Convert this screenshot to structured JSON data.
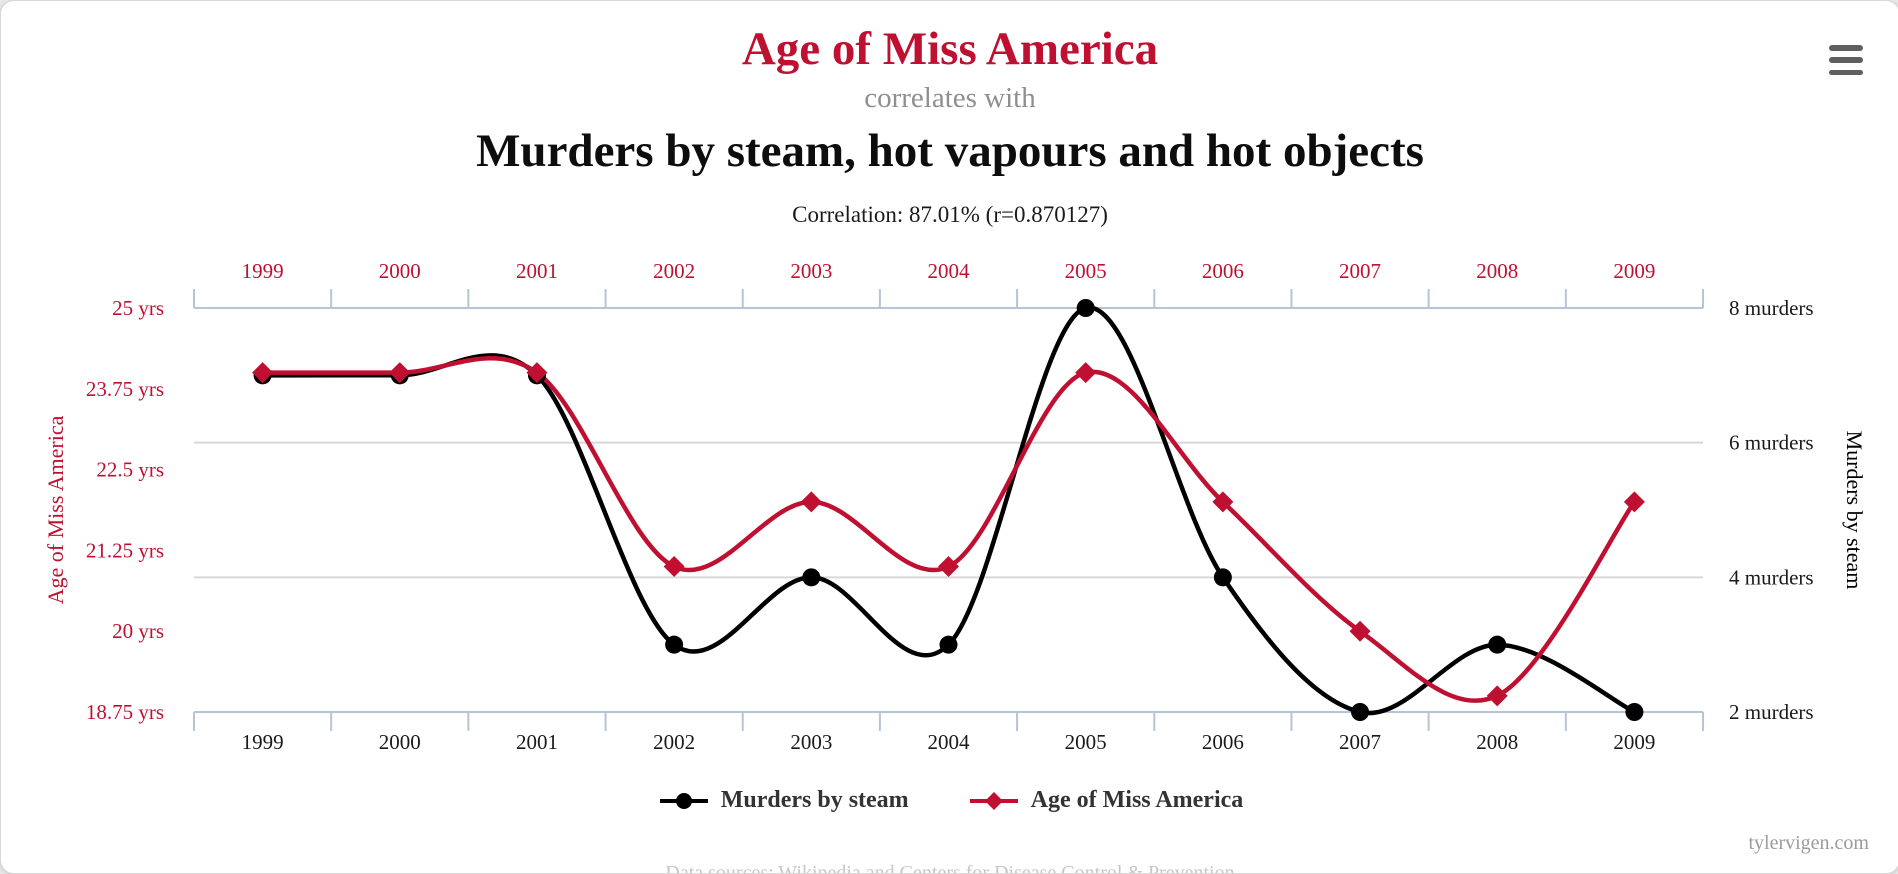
{
  "header": {
    "title_red": "Age of Miss America",
    "connector": "correlates with",
    "title_black": "Murders by steam, hot vapours and hot objects",
    "correlation_line": "Correlation: 87.01% (r=0.870127)"
  },
  "colors": {
    "red": "#c01032",
    "black": "#000000",
    "axis_lines": "#b5c4d6",
    "gridline": "#d8d8d8",
    "top_year_labels": "#c01032",
    "bottom_year_labels": "#1a1a1a",
    "right_tick_labels": "#1a1a1a"
  },
  "chart_data": {
    "type": "line",
    "x": [
      "1999",
      "2000",
      "2001",
      "2002",
      "2003",
      "2004",
      "2005",
      "2006",
      "2007",
      "2008",
      "2009"
    ],
    "x_axis_top": {
      "labels_color": "red",
      "position": "above plot"
    },
    "x_axis_bottom": {
      "labels_color": "black",
      "position": "below plot"
    },
    "series": [
      {
        "name": "Murders by steam",
        "axis": "right",
        "marker": "circle",
        "color": "#000000",
        "values": [
          7,
          7,
          7,
          3,
          4,
          3,
          8,
          4,
          2,
          3,
          2
        ]
      },
      {
        "name": "Age of Miss America",
        "axis": "left",
        "marker": "diamond",
        "color": "#c01032",
        "values": [
          24,
          24,
          24,
          21,
          22,
          21,
          24,
          22,
          20,
          19,
          22
        ]
      }
    ],
    "left_axis": {
      "label": "Age of Miss America",
      "tick_labels": [
        "25 yrs",
        "23.75 yrs",
        "22.5 yrs",
        "21.25 yrs",
        "20 yrs",
        "18.75 yrs"
      ],
      "tick_values": [
        25,
        23.75,
        22.5,
        21.25,
        20,
        18.75
      ],
      "range": [
        18.75,
        25
      ]
    },
    "right_axis": {
      "label": "Murders by steam",
      "tick_labels": [
        "8 murders",
        "6 murders",
        "4 murders",
        "2 murders"
      ],
      "tick_values": [
        8,
        6,
        4,
        2
      ],
      "range": [
        2,
        8
      ]
    },
    "grid": "horizontal",
    "legend_position": "bottom",
    "curve": "smooth"
  },
  "legend": {
    "items": [
      {
        "label": "Murders by steam",
        "marker": "circle",
        "color": "#000000"
      },
      {
        "label": "Age of Miss America",
        "marker": "diamond",
        "color": "#c01032"
      }
    ]
  },
  "footer": {
    "source": "Data sources: Wikipedia and Centers for Disease Control & Prevention",
    "credit": "tylervigen.com"
  }
}
